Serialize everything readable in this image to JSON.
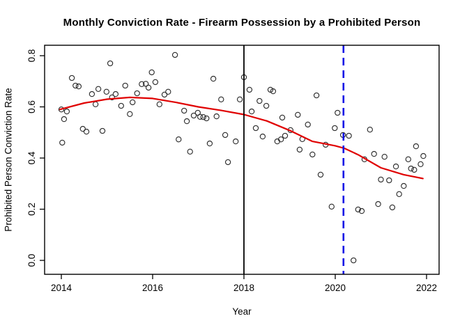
{
  "chart_data": {
    "type": "scatter",
    "title": "Monthly Conviction Rate - Firearm Possession by a Prohibited Person",
    "xlabel": "Year",
    "ylabel": "Prohibited Person Conviction Rate",
    "xlim": [
      2013.63,
      2022.27
    ],
    "ylim": [
      -0.05,
      0.84
    ],
    "grid": false,
    "legend": "none",
    "xticks": [
      {
        "value": 2014,
        "label": "2014"
      },
      {
        "value": 2016,
        "label": "2016"
      },
      {
        "value": 2018,
        "label": "2018"
      },
      {
        "value": 2020,
        "label": "2020"
      },
      {
        "value": 2022,
        "label": "2022"
      }
    ],
    "yticks": [
      {
        "value": 0.0,
        "label": "0.0"
      },
      {
        "value": 0.2,
        "label": "0.2"
      },
      {
        "value": 0.4,
        "label": "0.4"
      },
      {
        "value": 0.6,
        "label": "0.6"
      },
      {
        "value": 0.8,
        "label": "0.8"
      }
    ],
    "point_style": {
      "shape": "open-circle",
      "color": "#2e2e2e",
      "radius": 3.6
    },
    "frame_color": "#000000",
    "points": [
      [
        2014.0,
        0.59
      ],
      [
        2014.02,
        0.46
      ],
      [
        2014.06,
        0.552
      ],
      [
        2014.12,
        0.582
      ],
      [
        2014.23,
        0.713
      ],
      [
        2014.31,
        0.683
      ],
      [
        2014.38,
        0.68
      ],
      [
        2014.47,
        0.514
      ],
      [
        2014.55,
        0.503
      ],
      [
        2014.67,
        0.65
      ],
      [
        2014.75,
        0.61
      ],
      [
        2014.81,
        0.67
      ],
      [
        2014.9,
        0.506
      ],
      [
        2014.99,
        0.659
      ],
      [
        2015.07,
        0.77
      ],
      [
        2015.11,
        0.637
      ],
      [
        2015.19,
        0.65
      ],
      [
        2015.31,
        0.604
      ],
      [
        2015.4,
        0.683
      ],
      [
        2015.5,
        0.572
      ],
      [
        2015.56,
        0.618
      ],
      [
        2015.66,
        0.653
      ],
      [
        2015.76,
        0.689
      ],
      [
        2015.85,
        0.69
      ],
      [
        2015.91,
        0.675
      ],
      [
        2015.98,
        0.735
      ],
      [
        2016.06,
        0.697
      ],
      [
        2016.15,
        0.61
      ],
      [
        2016.26,
        0.648
      ],
      [
        2016.34,
        0.659
      ],
      [
        2016.49,
        0.803
      ],
      [
        2016.57,
        0.473
      ],
      [
        2016.69,
        0.585
      ],
      [
        2016.75,
        0.544
      ],
      [
        2016.82,
        0.425
      ],
      [
        2016.9,
        0.566
      ],
      [
        2016.99,
        0.577
      ],
      [
        2017.04,
        0.561
      ],
      [
        2017.11,
        0.56
      ],
      [
        2017.18,
        0.555
      ],
      [
        2017.25,
        0.457
      ],
      [
        2017.33,
        0.71
      ],
      [
        2017.4,
        0.563
      ],
      [
        2017.5,
        0.629
      ],
      [
        2017.59,
        0.49
      ],
      [
        2017.65,
        0.384
      ],
      [
        2017.82,
        0.465
      ],
      [
        2017.91,
        0.629
      ],
      [
        2018.0,
        0.716
      ],
      [
        2018.12,
        0.667
      ],
      [
        2018.17,
        0.582
      ],
      [
        2018.26,
        0.517
      ],
      [
        2018.34,
        0.623
      ],
      [
        2018.41,
        0.484
      ],
      [
        2018.49,
        0.604
      ],
      [
        2018.58,
        0.667
      ],
      [
        2018.64,
        0.661
      ],
      [
        2018.73,
        0.465
      ],
      [
        2018.81,
        0.473
      ],
      [
        2018.84,
        0.558
      ],
      [
        2018.9,
        0.487
      ],
      [
        2019.02,
        0.509
      ],
      [
        2019.18,
        0.569
      ],
      [
        2019.22,
        0.433
      ],
      [
        2019.28,
        0.474
      ],
      [
        2019.4,
        0.531
      ],
      [
        2019.5,
        0.414
      ],
      [
        2019.59,
        0.645
      ],
      [
        2019.68,
        0.335
      ],
      [
        2019.79,
        0.452
      ],
      [
        2019.92,
        0.21
      ],
      [
        2019.99,
        0.517
      ],
      [
        2020.05,
        0.577
      ],
      [
        2020.17,
        0.49
      ],
      [
        2020.3,
        0.487
      ],
      [
        2020.4,
        0.0
      ],
      [
        2020.5,
        0.199
      ],
      [
        2020.58,
        0.193
      ],
      [
        2020.64,
        0.395
      ],
      [
        2020.76,
        0.511
      ],
      [
        2020.85,
        0.416
      ],
      [
        2020.94,
        0.22
      ],
      [
        2021.0,
        0.316
      ],
      [
        2021.08,
        0.405
      ],
      [
        2021.18,
        0.313
      ],
      [
        2021.25,
        0.207
      ],
      [
        2021.33,
        0.367
      ],
      [
        2021.4,
        0.259
      ],
      [
        2021.5,
        0.291
      ],
      [
        2021.6,
        0.395
      ],
      [
        2021.66,
        0.359
      ],
      [
        2021.73,
        0.354
      ],
      [
        2021.77,
        0.446
      ],
      [
        2021.87,
        0.376
      ],
      [
        2021.93,
        0.408
      ]
    ],
    "smooth_line": {
      "name": "loess-trend",
      "color": "#e00000",
      "width": 2.2,
      "points": [
        [
          2013.97,
          0.59
        ],
        [
          2014.5,
          0.615
        ],
        [
          2015.0,
          0.63
        ],
        [
          2015.5,
          0.637
        ],
        [
          2016.0,
          0.633
        ],
        [
          2016.5,
          0.618
        ],
        [
          2017.0,
          0.6
        ],
        [
          2017.5,
          0.586
        ],
        [
          2018.0,
          0.57
        ],
        [
          2018.5,
          0.545
        ],
        [
          2019.0,
          0.508
        ],
        [
          2019.5,
          0.465
        ],
        [
          2020.0,
          0.448
        ],
        [
          2020.2,
          0.438
        ],
        [
          2020.5,
          0.413
        ],
        [
          2021.0,
          0.362
        ],
        [
          2021.5,
          0.335
        ],
        [
          2021.92,
          0.32
        ]
      ]
    },
    "vlines": [
      {
        "name": "reference-line-2018",
        "x": 2018.0,
        "color": "#000000",
        "style": "solid",
        "width": 1.8
      },
      {
        "name": "reference-line-2020",
        "x": 2020.18,
        "color": "#0f0fe6",
        "style": "dashed",
        "width": 2.6
      }
    ]
  }
}
